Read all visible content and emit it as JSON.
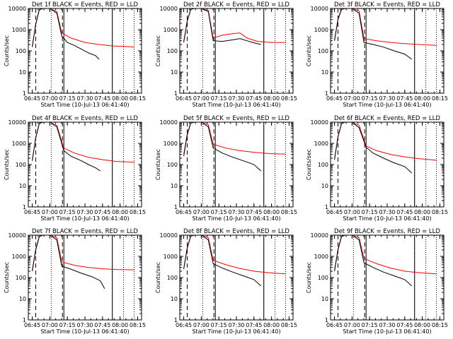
{
  "chart_data": {
    "type": "line",
    "start_time_label": "Start Time (10-Jul-13 06:41:40)",
    "ylabel": "Counts/sec",
    "x_tick_labels": [
      "06:45",
      "07:00",
      "07:15",
      "07:30",
      "07:45",
      "08:00",
      "08:15"
    ],
    "y_tick_labels": [
      "1",
      "10",
      "100",
      "1000",
      "10000"
    ],
    "yscale": "log",
    "ylim": [
      1,
      10000
    ],
    "series_colors": {
      "events": "#000000",
      "lld": "#ff0000"
    },
    "panels": [
      {
        "title": "Det 1f BLACK = Events, RED = LLD",
        "events": [
          [
            6.75,
            150
          ],
          [
            6.8,
            1800
          ],
          [
            6.85,
            8500
          ],
          [
            6.9,
            10000
          ],
          [
            7.0,
            10000
          ],
          [
            7.1,
            6000
          ],
          [
            7.17,
            500
          ],
          [
            7.25,
            250
          ],
          [
            7.35,
            180
          ],
          [
            7.45,
            120
          ],
          [
            7.55,
            80
          ],
          [
            7.65,
            60
          ],
          [
            7.7,
            40
          ]
        ],
        "lld": [
          [
            6.75,
            160
          ],
          [
            6.8,
            1900
          ],
          [
            6.85,
            9000
          ],
          [
            6.9,
            10000
          ],
          [
            7.0,
            10000
          ],
          [
            7.1,
            7000
          ],
          [
            7.17,
            700
          ],
          [
            7.3,
            400
          ],
          [
            7.5,
            250
          ],
          [
            7.7,
            200
          ],
          [
            7.9,
            170
          ],
          [
            8.1,
            160
          ],
          [
            8.2,
            150
          ]
        ]
      },
      {
        "title": "Det 2f BLACK = Events, RED = LLD",
        "events": [
          [
            6.75,
            250
          ],
          [
            6.8,
            2500
          ],
          [
            6.85,
            9000
          ],
          [
            6.9,
            10000
          ],
          [
            7.0,
            10000
          ],
          [
            7.1,
            7000
          ],
          [
            7.17,
            300
          ],
          [
            7.3,
            280
          ],
          [
            7.45,
            330
          ],
          [
            7.55,
            380
          ],
          [
            7.65,
            300
          ],
          [
            7.75,
            240
          ],
          [
            7.85,
            200
          ]
        ],
        "lld": [
          [
            6.75,
            280
          ],
          [
            6.8,
            2600
          ],
          [
            6.85,
            9500
          ],
          [
            6.9,
            10000
          ],
          [
            7.0,
            10000
          ],
          [
            7.1,
            8000
          ],
          [
            7.17,
            400
          ],
          [
            7.3,
            550
          ],
          [
            7.45,
            650
          ],
          [
            7.55,
            700
          ],
          [
            7.65,
            400
          ],
          [
            7.8,
            280
          ],
          [
            8.0,
            250
          ],
          [
            8.2,
            250
          ]
        ]
      },
      {
        "title": "Det 3f BLACK = Events, RED = LLD",
        "events": [
          [
            6.75,
            300
          ],
          [
            6.8,
            3000
          ],
          [
            6.85,
            9000
          ],
          [
            6.9,
            10000
          ],
          [
            7.0,
            10000
          ],
          [
            7.1,
            6000
          ],
          [
            7.17,
            250
          ],
          [
            7.3,
            200
          ],
          [
            7.45,
            150
          ],
          [
            7.6,
            100
          ],
          [
            7.75,
            70
          ],
          [
            7.85,
            40
          ]
        ],
        "lld": [
          [
            6.75,
            320
          ],
          [
            6.8,
            3200
          ],
          [
            6.85,
            9500
          ],
          [
            6.9,
            10000
          ],
          [
            7.0,
            10000
          ],
          [
            7.1,
            7500
          ],
          [
            7.17,
            380
          ],
          [
            7.35,
            300
          ],
          [
            7.55,
            250
          ],
          [
            7.75,
            220
          ],
          [
            7.95,
            200
          ],
          [
            8.2,
            180
          ]
        ]
      },
      {
        "title": "Det 4f BLACK = Events, RED = LLD",
        "events": [
          [
            6.75,
            150
          ],
          [
            6.8,
            1800
          ],
          [
            6.85,
            8500
          ],
          [
            6.9,
            10000
          ],
          [
            7.0,
            10000
          ],
          [
            7.1,
            6000
          ],
          [
            7.2,
            450
          ],
          [
            7.3,
            250
          ],
          [
            7.45,
            150
          ],
          [
            7.55,
            100
          ],
          [
            7.65,
            70
          ],
          [
            7.72,
            50
          ]
        ],
        "lld": [
          [
            6.75,
            160
          ],
          [
            6.8,
            1900
          ],
          [
            6.85,
            9000
          ],
          [
            6.9,
            10000
          ],
          [
            7.0,
            10000
          ],
          [
            7.1,
            7000
          ],
          [
            7.2,
            600
          ],
          [
            7.35,
            350
          ],
          [
            7.55,
            220
          ],
          [
            7.75,
            170
          ],
          [
            7.95,
            140
          ],
          [
            8.2,
            130
          ]
        ]
      },
      {
        "title": "Det 5f BLACK = Events, RED = LLD",
        "events": [
          [
            6.75,
            250
          ],
          [
            6.8,
            2500
          ],
          [
            6.85,
            9000
          ],
          [
            6.9,
            10000
          ],
          [
            7.0,
            10000
          ],
          [
            7.1,
            6000
          ],
          [
            7.17,
            600
          ],
          [
            7.3,
            350
          ],
          [
            7.45,
            220
          ],
          [
            7.6,
            150
          ],
          [
            7.75,
            100
          ],
          [
            7.85,
            50
          ]
        ],
        "lld": [
          [
            6.75,
            300
          ],
          [
            6.8,
            2800
          ],
          [
            6.85,
            9500
          ],
          [
            6.9,
            10000
          ],
          [
            7.0,
            10000
          ],
          [
            7.1,
            7500
          ],
          [
            7.17,
            900
          ],
          [
            7.35,
            600
          ],
          [
            7.55,
            450
          ],
          [
            7.75,
            380
          ],
          [
            7.95,
            330
          ],
          [
            8.2,
            310
          ]
        ]
      },
      {
        "title": "Det 6f BLACK = Events, RED = LLD",
        "events": [
          [
            6.75,
            170
          ],
          [
            6.8,
            2000
          ],
          [
            6.85,
            8500
          ],
          [
            6.9,
            10000
          ],
          [
            7.0,
            10000
          ],
          [
            7.1,
            5500
          ],
          [
            7.2,
            650
          ],
          [
            7.3,
            350
          ],
          [
            7.45,
            200
          ],
          [
            7.6,
            120
          ],
          [
            7.75,
            80
          ],
          [
            7.85,
            40
          ]
        ],
        "lld": [
          [
            6.75,
            180
          ],
          [
            6.8,
            2100
          ],
          [
            6.85,
            9000
          ],
          [
            6.9,
            10000
          ],
          [
            7.0,
            10000
          ],
          [
            7.1,
            7000
          ],
          [
            7.2,
            750
          ],
          [
            7.35,
            450
          ],
          [
            7.55,
            300
          ],
          [
            7.75,
            230
          ],
          [
            7.95,
            190
          ],
          [
            8.2,
            160
          ]
        ]
      },
      {
        "title": "Det 7f BLACK = Events, RED = LLD",
        "events": [
          [
            6.75,
            200
          ],
          [
            6.8,
            2000
          ],
          [
            6.85,
            8500
          ],
          [
            6.9,
            10000
          ],
          [
            7.0,
            10000
          ],
          [
            7.1,
            6000
          ],
          [
            7.17,
            350
          ],
          [
            7.3,
            250
          ],
          [
            7.45,
            160
          ],
          [
            7.6,
            110
          ],
          [
            7.72,
            70
          ],
          [
            7.78,
            30
          ]
        ],
        "lld": [
          [
            6.75,
            220
          ],
          [
            6.8,
            2200
          ],
          [
            6.85,
            9000
          ],
          [
            6.9,
            10000
          ],
          [
            7.0,
            10000
          ],
          [
            7.1,
            7500
          ],
          [
            7.17,
            550
          ],
          [
            7.35,
            380
          ],
          [
            7.55,
            300
          ],
          [
            7.75,
            260
          ],
          [
            7.95,
            240
          ],
          [
            8.2,
            230
          ]
        ]
      },
      {
        "title": "Det 8f BLACK = Events, RED = LLD",
        "events": [
          [
            6.75,
            250
          ],
          [
            6.8,
            2400
          ],
          [
            6.85,
            9000
          ],
          [
            6.9,
            10000
          ],
          [
            7.0,
            10000
          ],
          [
            7.1,
            6000
          ],
          [
            7.17,
            450
          ],
          [
            7.3,
            280
          ],
          [
            7.45,
            180
          ],
          [
            7.6,
            120
          ],
          [
            7.75,
            80
          ],
          [
            7.85,
            40
          ]
        ],
        "lld": [
          [
            6.75,
            270
          ],
          [
            6.8,
            2600
          ],
          [
            6.85,
            9500
          ],
          [
            6.9,
            10000
          ],
          [
            7.0,
            10000
          ],
          [
            7.1,
            7500
          ],
          [
            7.17,
            650
          ],
          [
            7.35,
            400
          ],
          [
            7.55,
            270
          ],
          [
            7.75,
            200
          ],
          [
            7.95,
            170
          ],
          [
            8.2,
            150
          ]
        ]
      },
      {
        "title": "Det 9f BLACK = Events, RED = LLD",
        "events": [
          [
            6.75,
            200
          ],
          [
            6.8,
            2000
          ],
          [
            6.85,
            8500
          ],
          [
            6.9,
            10000
          ],
          [
            7.0,
            10000
          ],
          [
            7.1,
            6000
          ],
          [
            7.17,
            500
          ],
          [
            7.3,
            300
          ],
          [
            7.45,
            180
          ],
          [
            7.6,
            120
          ],
          [
            7.75,
            80
          ],
          [
            7.85,
            40
          ]
        ],
        "lld": [
          [
            6.75,
            220
          ],
          [
            6.8,
            2200
          ],
          [
            6.85,
            9000
          ],
          [
            6.9,
            10000
          ],
          [
            7.0,
            10000
          ],
          [
            7.1,
            7500
          ],
          [
            7.17,
            800
          ],
          [
            7.35,
            450
          ],
          [
            7.55,
            280
          ],
          [
            7.75,
            200
          ],
          [
            7.95,
            170
          ],
          [
            8.2,
            150
          ]
        ]
      }
    ]
  }
}
